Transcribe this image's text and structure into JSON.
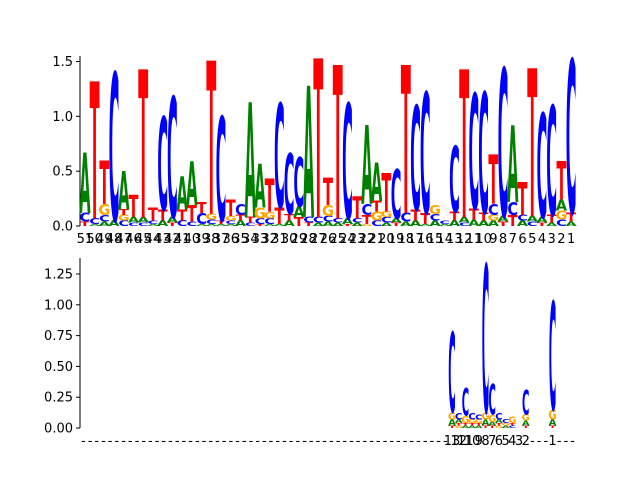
{
  "colors": {
    "A": "#008000",
    "C": "#0000ff",
    "G": "#ffa500",
    "T": "#ff0000"
  },
  "chart_data": [
    {
      "type": "sequence-logo",
      "title": "",
      "xlabel": "",
      "ylabel": "",
      "ylim": [
        0,
        1.55
      ],
      "yticks": [
        "0.0",
        "0.5",
        "1.0",
        "1.5"
      ],
      "ytick_values": [
        0,
        0.5,
        1.0,
        1.5
      ],
      "xticks": [
        "51",
        "50",
        "49",
        "48",
        "47",
        "46",
        "45",
        "44",
        "43",
        "42",
        "41",
        "40",
        "39",
        "38",
        "37",
        "36",
        "35",
        "34",
        "33",
        "32",
        "31",
        "30",
        "29",
        "28",
        "27",
        "26",
        "25",
        "24",
        "23",
        "22",
        "21",
        "20",
        "19",
        "18",
        "17",
        "16",
        "15",
        "14",
        "13",
        "12",
        "11",
        "10",
        "9",
        "8",
        "7",
        "6",
        "5",
        "4",
        "3",
        "2",
        "1"
      ],
      "positions": [
        {
          "A": 0.55,
          "C": 0.08,
          "G": 0.0,
          "T": 0.04
        },
        {
          "A": 0.02,
          "C": 0.05,
          "G": 0.0,
          "T": 1.25
        },
        {
          "A": 0.04,
          "C": 0.06,
          "G": 0.1,
          "T": 0.4
        },
        {
          "A": 0.05,
          "C": 1.35,
          "G": 0.0,
          "T": 0.0
        },
        {
          "A": 0.35,
          "C": 0.05,
          "G": 0.05,
          "T": 0.05
        },
        {
          "A": 0.05,
          "C": 0.03,
          "G": 0.0,
          "T": 0.2
        },
        {
          "A": 0.05,
          "C": 0.03,
          "G": 0.0,
          "T": 1.35
        },
        {
          "A": 0.02,
          "C": 0.03,
          "G": 0.0,
          "T": 0.12
        },
        {
          "A": 0.05,
          "C": 0.85,
          "G": 0.0,
          "T": 0.1
        },
        {
          "A": 0.05,
          "C": 1.1,
          "G": 0.0,
          "T": 0.03
        },
        {
          "A": 0.3,
          "C": 0.05,
          "G": 0.0,
          "T": 0.1
        },
        {
          "A": 0.4,
          "C": 0.04,
          "G": 0.0,
          "T": 0.15
        },
        {
          "A": 0.02,
          "C": 0.1,
          "G": 0.0,
          "T": 0.1
        },
        {
          "A": 0.02,
          "C": 0.04,
          "G": 0.05,
          "T": 1.4
        },
        {
          "A": 0.02,
          "C": 0.95,
          "G": 0.0,
          "T": 0.03
        },
        {
          "A": 0.02,
          "C": 0.03,
          "G": 0.04,
          "T": 0.15
        },
        {
          "A": 0.05,
          "C": 0.1,
          "G": 0.0,
          "T": 0.05
        },
        {
          "A": 1.05,
          "C": 0.03,
          "G": 0.0,
          "T": 0.05
        },
        {
          "A": 0.4,
          "C": 0.05,
          "G": 0.1,
          "T": 0.02
        },
        {
          "A": 0.02,
          "C": 0.05,
          "G": 0.06,
          "T": 0.3
        },
        {
          "A": 0.02,
          "C": 0.95,
          "G": 0.0,
          "T": 0.15
        },
        {
          "A": 0.05,
          "C": 0.55,
          "G": 0.0,
          "T": 0.06
        },
        {
          "A": 0.1,
          "C": 0.45,
          "G": 0.0,
          "T": 0.08
        },
        {
          "A": 1.2,
          "C": 0.05,
          "G": 0.0,
          "T": 0.03
        },
        {
          "A": 0.03,
          "C": 0.05,
          "G": 0.0,
          "T": 1.45
        },
        {
          "A": 0.04,
          "C": 0.05,
          "G": 0.1,
          "T": 0.25
        },
        {
          "A": 0.03,
          "C": 0.04,
          "G": 0.0,
          "T": 1.4
        },
        {
          "A": 0.05,
          "C": 1.05,
          "G": 0.0,
          "T": 0.02
        },
        {
          "A": 0.03,
          "C": 0.04,
          "G": 0.0,
          "T": 0.2
        },
        {
          "A": 0.72,
          "C": 0.1,
          "G": 0.02,
          "T": 0.08
        },
        {
          "A": 0.35,
          "C": 0.05,
          "G": 0.08,
          "T": 0.1
        },
        {
          "A": 0.03,
          "C": 0.05,
          "G": 0.05,
          "T": 0.35
        },
        {
          "A": 0.04,
          "C": 0.45,
          "G": 0.0,
          "T": 0.03
        },
        {
          "A": 0.04,
          "C": 0.08,
          "G": 0.0,
          "T": 1.35
        },
        {
          "A": 0.05,
          "C": 0.95,
          "G": 0.0,
          "T": 0.1
        },
        {
          "A": 0.02,
          "C": 1.1,
          "G": 0.0,
          "T": 0.1
        },
        {
          "A": 0.05,
          "C": 0.06,
          "G": 0.08,
          "T": 0.0
        },
        {
          "A": 0.02,
          "C": 0.03,
          "G": 0.0,
          "T": 0.0
        },
        {
          "A": 0.05,
          "C": 0.6,
          "G": 0.0,
          "T": 0.08
        },
        {
          "A": 0.05,
          "C": 0.03,
          "G": 0.0,
          "T": 1.35
        },
        {
          "A": 0.06,
          "C": 1.05,
          "G": 0.0,
          "T": 0.1
        },
        {
          "A": 0.05,
          "C": 1.1,
          "G": 0.0,
          "T": 0.07
        },
        {
          "A": 0.05,
          "C": 0.1,
          "G": 0.05,
          "T": 0.45
        },
        {
          "A": 0.05,
          "C": 1.35,
          "G": 0.0,
          "T": 0.04
        },
        {
          "A": 0.7,
          "C": 0.12,
          "G": 0.0,
          "T": 0.1
        },
        {
          "A": 0.05,
          "C": 0.05,
          "G": 0.0,
          "T": 0.3
        },
        {
          "A": 0.05,
          "C": 0.04,
          "G": 0.0,
          "T": 1.35
        },
        {
          "A": 0.05,
          "C": 0.95,
          "G": 0.0,
          "T": 0.03
        },
        {
          "A": 0.03,
          "C": 1.0,
          "G": 0.0,
          "T": 0.07
        },
        {
          "A": 0.1,
          "C": 0.06,
          "G": 0.08,
          "T": 0.35
        },
        {
          "A": 0.04,
          "C": 1.4,
          "G": 0.0,
          "T": 0.08
        }
      ]
    },
    {
      "type": "sequence-logo",
      "title": "",
      "xlabel": "",
      "ylabel": "",
      "ylim": [
        0,
        1.38
      ],
      "yticks": [
        "0.00",
        "0.25",
        "0.50",
        "0.75",
        "1.00",
        "1.25"
      ],
      "ytick_values": [
        0,
        0.25,
        0.5,
        0.75,
        1.0,
        1.25
      ],
      "xticks": [
        "-",
        "-",
        "-",
        "-",
        "-",
        "-",
        "-",
        "-",
        "-",
        "-",
        "-",
        "-",
        "-",
        "-",
        "-",
        "-",
        "-",
        "-",
        "-",
        "-",
        "-",
        "-",
        "-",
        "-",
        "-",
        "-",
        "-",
        "-",
        "-",
        "-",
        "-",
        "-",
        "-",
        "-",
        "-",
        "-",
        "-",
        "-",
        "-",
        "-",
        "-",
        "-",
        "-",
        "-",
        "-",
        "-",
        "-",
        "-",
        "-",
        "-",
        "-",
        "-",
        "-",
        "-",
        "-",
        "13",
        "12",
        "11",
        "10",
        "9",
        "8",
        "7",
        "6",
        "5",
        "4",
        "3",
        "2",
        "-",
        "-",
        "-",
        "1",
        "-",
        "-",
        "-"
      ],
      "positions": [
        {},
        {},
        {},
        {},
        {},
        {},
        {},
        {},
        {},
        {},
        {},
        {},
        {},
        {},
        {},
        {},
        {},
        {},
        {},
        {},
        {},
        {},
        {},
        {},
        {},
        {},
        {},
        {},
        {},
        {},
        {},
        {},
        {},
        {},
        {},
        {},
        {},
        {},
        {},
        {},
        {},
        {},
        {},
        {},
        {},
        {},
        {},
        {},
        {},
        {},
        {},
        {},
        {},
        {},
        {},
        {
          "A": 0.05,
          "C": 0.65,
          "G": 0.06,
          "T": 0.02
        },
        {
          "A": 0.03,
          "C": 0.05,
          "G": 0.02,
          "T": 0.02
        },
        {
          "A": 0.02,
          "C": 0.22,
          "G": 0.06,
          "T": 0.02
        },
        {
          "A": 0.02,
          "C": 0.05,
          "G": 0.03,
          "T": 0.02
        },
        {
          "A": 0.02,
          "C": 0.04,
          "G": 0.03,
          "T": 0.02
        },
        {
          "A": 0.05,
          "C": 1.2,
          "G": 0.06,
          "T": 0.02
        },
        {
          "A": 0.03,
          "C": 0.25,
          "G": 0.06,
          "T": 0.02
        },
        {
          "A": 0.03,
          "C": 0.05,
          "G": 0.02,
          "T": 0.02
        },
        {
          "A": 0.02,
          "C": 0.03,
          "G": 0.02,
          "T": 0.0
        },
        {
          "A": 0.0,
          "C": 0.02,
          "G": 0.05,
          "T": 0.02
        },
        {
          "A": 0.0,
          "C": 0.0,
          "G": 0.0,
          "T": 0.0
        },
        {
          "A": 0.04,
          "C": 0.2,
          "G": 0.05,
          "T": 0.02
        },
        {},
        {},
        {},
        {
          "A": 0.05,
          "C": 0.88,
          "G": 0.08,
          "T": 0.02
        },
        {},
        {},
        {}
      ]
    }
  ]
}
